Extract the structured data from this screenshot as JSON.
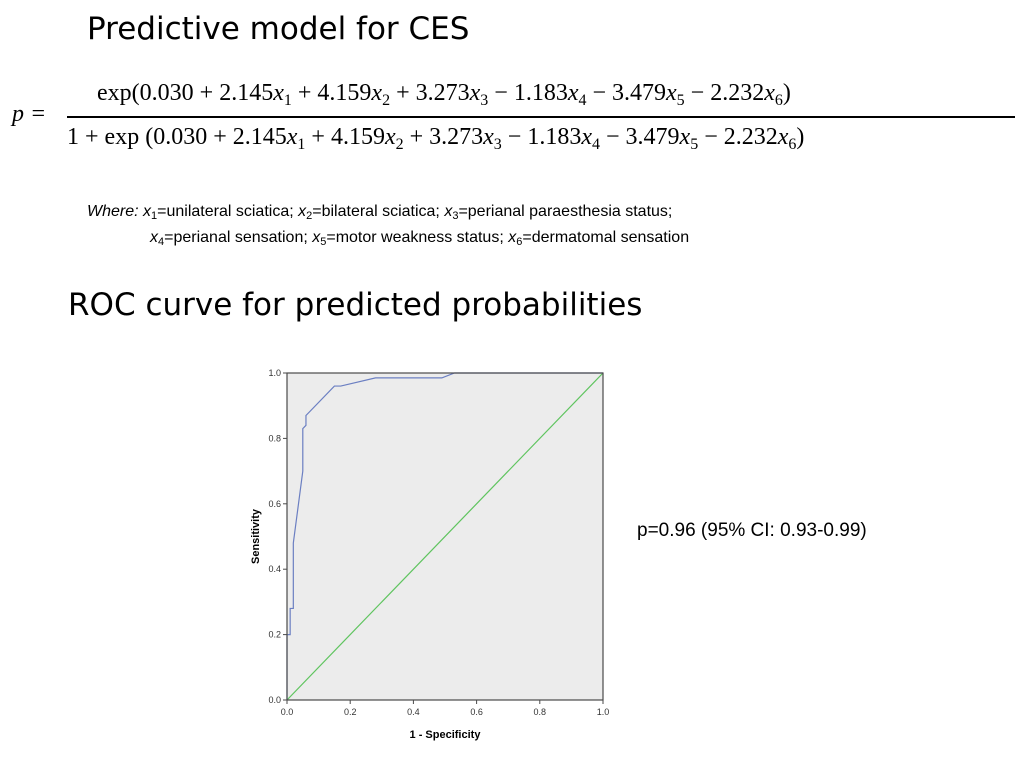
{
  "titles": {
    "model": "Predictive model for CES",
    "roc": "ROC curve for predicted probabilities"
  },
  "formula": {
    "lhs": "p =",
    "exp_open": "exp(",
    "one_plus": "1 + exp (",
    "intercept": "0.030",
    "terms": [
      {
        "sign": "+",
        "coef": "2.145",
        "var": "x",
        "sub": "1"
      },
      {
        "sign": "+",
        "coef": "4.159",
        "var": "x",
        "sub": "2"
      },
      {
        "sign": "+",
        "coef": "3.273",
        "var": "x",
        "sub": "3"
      },
      {
        "sign": "−",
        "coef": "1.183",
        "var": "x",
        "sub": "4"
      },
      {
        "sign": "−",
        "coef": "3.479",
        "var": "x",
        "sub": "5"
      },
      {
        "sign": "−",
        "coef": "2.232",
        "var": "x",
        "sub": "6"
      }
    ],
    "close": ")"
  },
  "legend": {
    "where_label": "Where:",
    "line1": [
      {
        "var": "x",
        "sub": "1",
        "text": "=unilateral sciatica; "
      },
      {
        "var": "x",
        "sub": "2",
        "text": "=bilateral sciatica; "
      },
      {
        "var": "x",
        "sub": "3",
        "text": "=perianal paraesthesia status;"
      }
    ],
    "line2": [
      {
        "var": "x",
        "sub": "4",
        "text": "=perianal sensation; "
      },
      {
        "var": "x",
        "sub": "5",
        "text": "=motor weakness status; "
      },
      {
        "var": "x",
        "sub": "6",
        "text": "=dermatomal sensation"
      }
    ]
  },
  "auc_text": "p=0.96 (95% CI: 0.93-0.99)",
  "chart_data": {
    "type": "line",
    "xlabel": "1 - Specificity",
    "ylabel": "Sensitivity",
    "xlim": [
      0,
      1
    ],
    "ylim": [
      0,
      1
    ],
    "xticks": [
      "0.0",
      "0.2",
      "0.4",
      "0.6",
      "0.8",
      "1.0"
    ],
    "yticks": [
      "0.0",
      "0.2",
      "0.4",
      "0.6",
      "0.8",
      "1.0"
    ],
    "grid": false,
    "colors": {
      "roc": "#6b7fc2",
      "reference": "#5ec45e",
      "plot_bg": "#ececec",
      "frame": "#4a4a4a"
    },
    "series": [
      {
        "x": [
          0.0,
          0.0,
          0.01,
          0.01,
          0.02,
          0.02,
          0.05,
          0.05,
          0.06,
          0.06,
          0.07,
          0.15,
          0.17,
          0.28,
          0.49,
          0.53,
          1.0
        ],
        "y": [
          0.0,
          0.2,
          0.2,
          0.28,
          0.28,
          0.48,
          0.7,
          0.83,
          0.84,
          0.87,
          0.88,
          0.96,
          0.96,
          0.985,
          0.985,
          1.0,
          1.0
        ]
      },
      {
        "x": [
          0.0,
          1.0
        ],
        "y": [
          0.0,
          1.0
        ]
      }
    ]
  }
}
